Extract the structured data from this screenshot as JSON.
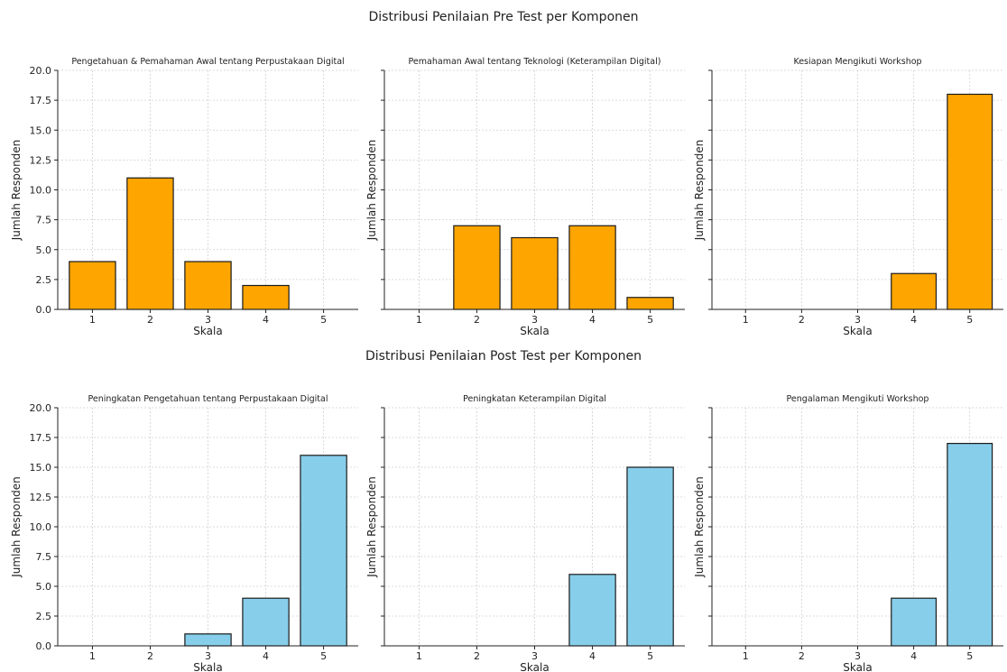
{
  "figure": {
    "pre_title": "Distribusi Penilaian Pre Test per Komponen",
    "post_title": "Distribusi Penilaian Post Test per Komponen"
  },
  "colors": {
    "pre": "#FFA500",
    "post": "#87CEEB",
    "edge": "#1a1a1a",
    "grid": "#d0d0d0"
  },
  "chart_data": [
    {
      "type": "bar",
      "group": "pre",
      "title": "Pengetahuan & Pemahaman Awal tentang Perpustakaan Digital",
      "categories": [
        "1",
        "2",
        "3",
        "4",
        "5"
      ],
      "values": [
        4,
        11,
        4,
        2,
        0
      ],
      "xlabel": "Skala",
      "ylabel": "Jumlah Responden",
      "ylim": [
        0,
        20
      ],
      "yticks": [
        "0.0",
        "2.5",
        "5.0",
        "7.5",
        "10.0",
        "12.5",
        "15.0",
        "17.5",
        "20.0"
      ],
      "grid": true
    },
    {
      "type": "bar",
      "group": "pre",
      "title": "Pemahaman Awal tentang Teknologi (Keterampilan Digital)",
      "categories": [
        "1",
        "2",
        "3",
        "4",
        "5"
      ],
      "values": [
        0,
        7,
        6,
        7,
        1
      ],
      "xlabel": "Skala",
      "ylabel": "Jumlah Responden",
      "ylim": [
        0,
        20
      ],
      "grid": true
    },
    {
      "type": "bar",
      "group": "pre",
      "title": "Kesiapan Mengikuti Workshop",
      "categories": [
        "1",
        "2",
        "3",
        "4",
        "5"
      ],
      "values": [
        0,
        0,
        0,
        3,
        18
      ],
      "xlabel": "Skala",
      "ylabel": "Jumlah Responden",
      "ylim": [
        0,
        20
      ],
      "grid": true
    },
    {
      "type": "bar",
      "group": "post",
      "title": "Peningkatan Pengetahuan tentang Perpustakaan Digital",
      "categories": [
        "1",
        "2",
        "3",
        "4",
        "5"
      ],
      "values": [
        0,
        0,
        1,
        4,
        16
      ],
      "xlabel": "Skala",
      "ylabel": "Jumlah Responden",
      "ylim": [
        0,
        20
      ],
      "yticks": [
        "0.0",
        "2.5",
        "5.0",
        "7.5",
        "10.0",
        "12.5",
        "15.0",
        "17.5",
        "20.0"
      ],
      "grid": true
    },
    {
      "type": "bar",
      "group": "post",
      "title": "Peningkatan Keterampilan Digital",
      "categories": [
        "1",
        "2",
        "3",
        "4",
        "5"
      ],
      "values": [
        0,
        0,
        0,
        6,
        15
      ],
      "xlabel": "Skala",
      "ylabel": "Jumlah Responden",
      "ylim": [
        0,
        20
      ],
      "grid": true
    },
    {
      "type": "bar",
      "group": "post",
      "title": "Pengalaman Mengikuti Workshop",
      "categories": [
        "1",
        "2",
        "3",
        "4",
        "5"
      ],
      "values": [
        0,
        0,
        0,
        4,
        17
      ],
      "xlabel": "Skala",
      "ylabel": "Jumlah Responden",
      "ylim": [
        0,
        20
      ],
      "grid": true
    }
  ]
}
